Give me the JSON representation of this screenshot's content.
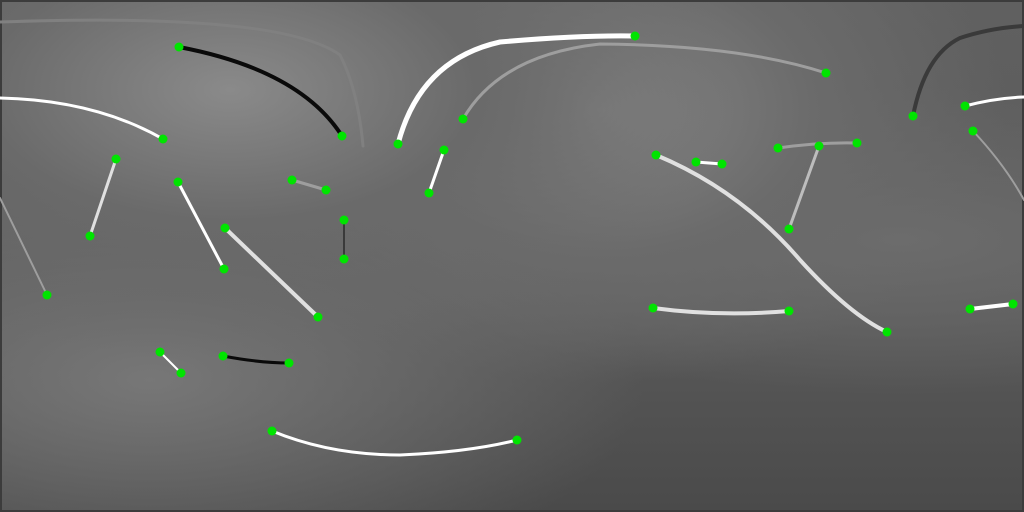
{
  "scene": {
    "style": {
      "endpoint_color": "#00e400",
      "stroke_colors": [
        "#ffffff",
        "#e0e0e0",
        "#bdbdbd",
        "#9e9e9e",
        "#808080",
        "#3a3a3a",
        "#0a0a0a"
      ]
    }
  }
}
